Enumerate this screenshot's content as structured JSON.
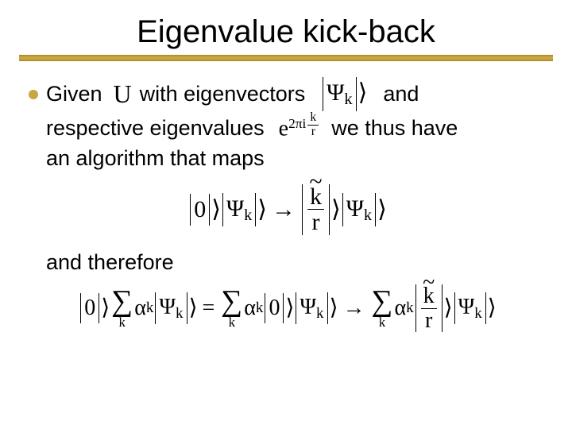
{
  "title": "Eigenvalue kick-back",
  "colors": {
    "rule_top": "#b09030",
    "rule_mid": "#c8a640",
    "rule_bot": "#b09030",
    "bullet": "#c8a640",
    "background": "#ffffff",
    "text": "#000000"
  },
  "fonts": {
    "title_family": "Comic Sans MS",
    "title_size_pt": 30,
    "body_family": "Comic Sans MS",
    "body_size_pt": 20,
    "math_family": "Times New Roman"
  },
  "bullet1": {
    "frag_given": "Given",
    "frag_with_eigvec": "with eigenvectors",
    "frag_and": "and",
    "frag_resp_eigvals": "respective eigenvalues",
    "frag_we_thus_have": "we thus have",
    "frag_algo_maps": "an algorithm that maps",
    "operator_U": "U",
    "psi_label": "Ψ",
    "psi_sub": "k",
    "eigval_base": "e",
    "eigval_exp_prefix": "2πi",
    "eigval_exp_num": "k",
    "eigval_exp_den": "r"
  },
  "map_eq": {
    "zero": "0",
    "psi": "Ψ",
    "k": "k",
    "ktilde": "k",
    "r": "r"
  },
  "therefore_label": "and therefore",
  "long_eq": {
    "zero": "0",
    "alpha": "α",
    "k": "k",
    "psi": "Ψ",
    "ktilde": "k",
    "r": "r"
  }
}
